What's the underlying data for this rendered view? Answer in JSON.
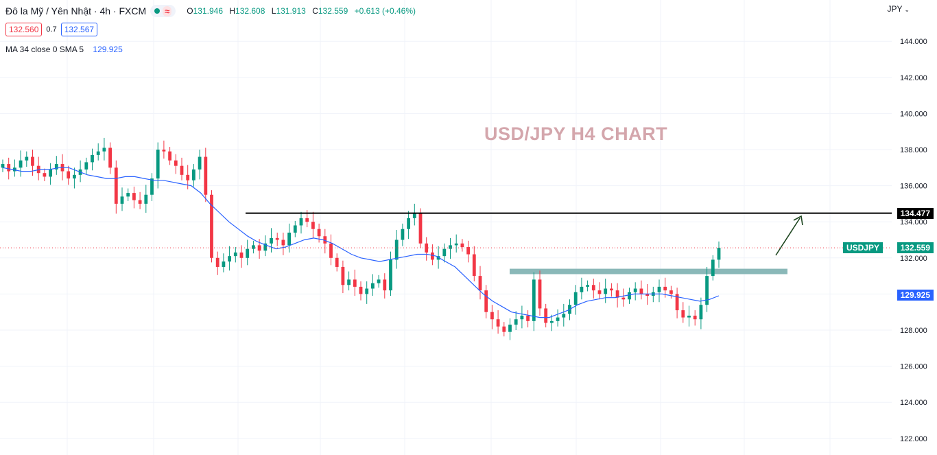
{
  "header": {
    "title": "Đô la Mỹ / Yên Nhật · 4h · FXCM",
    "ohlc": {
      "o_label": "O",
      "o": "131.946",
      "h_label": "H",
      "h": "132.608",
      "l_label": "L",
      "l": "131.913",
      "c_label": "C",
      "c": "132.559",
      "change": "+0.613 (+0.46%)"
    },
    "sell_price": "132.560",
    "spread": "0.7",
    "buy_price": "132.567",
    "ma_label": "MA 34 close 0 SMA 5",
    "ma_value": "129.925"
  },
  "axis": {
    "currency": "JPY"
  },
  "watermark": "USD/JPY H4 CHART",
  "labels": {
    "resistance": "134.477",
    "symbol": "USDJPY",
    "last": "132.559",
    "ma": "129.925"
  },
  "colors": {
    "up": "#089981",
    "down": "#f23645",
    "ma": "#2962ff",
    "zone": "#8ab8b8",
    "resistance": "#000000"
  },
  "chart_data": {
    "type": "candlestick",
    "title": "USD/JPY H4 CHART",
    "ylim": [
      121.4,
      146
    ],
    "yticks": [
      "122.000",
      "124.000",
      "126.000",
      "128.000",
      "130.000",
      "132.000",
      "134.000",
      "136.000",
      "138.000",
      "140.000",
      "142.000",
      "144.000"
    ],
    "grid": true,
    "close_series": [
      137.2,
      136.8,
      137.0,
      137.4,
      137.6,
      137.1,
      136.7,
      136.5,
      136.9,
      137.2,
      136.8,
      136.4,
      136.6,
      136.9,
      137.3,
      137.7,
      137.9,
      138.1,
      137.0,
      135.0,
      135.4,
      135.6,
      135.2,
      135.0,
      135.5,
      136.4,
      138.0,
      137.9,
      137.4,
      137.1,
      136.6,
      136.3,
      136.9,
      137.6,
      135.5,
      132.0,
      131.5,
      131.8,
      132.1,
      132.3,
      132.0,
      132.5,
      132.7,
      132.4,
      132.8,
      133.1,
      133.0,
      132.7,
      133.4,
      133.8,
      134.2,
      134.0,
      133.6,
      133.2,
      132.8,
      132.0,
      131.5,
      130.5,
      130.8,
      130.4,
      130.0,
      130.3,
      130.6,
      130.8,
      130.2,
      131.9,
      133.0,
      133.6,
      134.2,
      134.5,
      132.8,
      132.3,
      131.9,
      132.1,
      132.5,
      132.7,
      132.8,
      132.6,
      132.2,
      131.0,
      130.2,
      129.0,
      128.6,
      128.2,
      127.9,
      128.3,
      128.6,
      128.8,
      128.5,
      130.8,
      129.2,
      128.4,
      128.5,
      128.7,
      128.9,
      129.4,
      130.1,
      130.4,
      130.5,
      130.2,
      130.0,
      130.3,
      130.2,
      129.8,
      129.7,
      130.1,
      130.3,
      130.0,
      129.9,
      130.1,
      130.4,
      130.2,
      130.0,
      129.1,
      128.7,
      128.8,
      128.6,
      129.4,
      131.0,
      131.9,
      132.559
    ],
    "ma34_series": [
      137.0,
      136.9,
      136.8,
      136.8,
      136.9,
      136.9,
      137.0,
      137.0,
      136.8,
      136.6,
      136.5,
      136.4,
      136.4,
      136.5,
      136.5,
      136.4,
      136.3,
      136.3,
      136.2,
      136.1,
      136.0,
      135.6,
      135.0,
      134.5,
      134.0,
      133.6,
      133.2,
      132.9,
      132.7,
      132.5,
      132.6,
      132.8,
      133.0,
      133.1,
      133.0,
      132.8,
      132.5,
      132.2,
      132.0,
      131.9,
      131.8,
      131.9,
      132.0,
      132.1,
      132.2,
      132.2,
      132.1,
      131.8,
      131.5,
      131.0,
      130.5,
      130.0,
      129.6,
      129.3,
      129.0,
      128.9,
      128.8,
      128.7,
      128.7,
      128.9,
      129.1,
      129.4,
      129.6,
      129.7,
      129.8,
      129.8,
      129.9,
      130.0,
      130.0,
      130.0,
      130.0,
      129.9,
      129.8,
      129.7,
      129.6,
      129.7,
      129.9
    ],
    "annotations": {
      "resistance_level": 134.477,
      "support_zone": [
        131.1,
        131.4
      ],
      "last_price": 132.559,
      "ma_value": 129.925
    }
  }
}
